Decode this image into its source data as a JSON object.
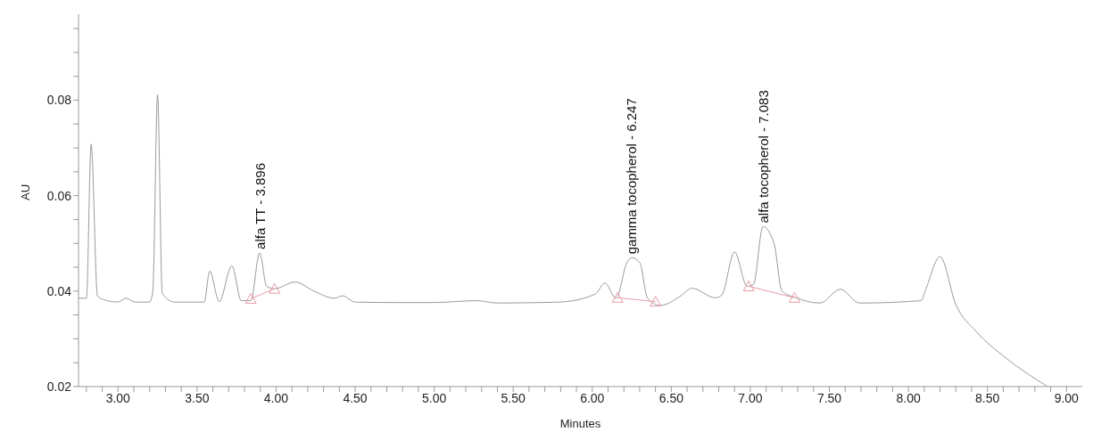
{
  "chart_data": {
    "type": "line",
    "xlabel": "Minutes",
    "ylabel": "AU",
    "xlim": [
      2.75,
      9.1
    ],
    "ylim": [
      0.02,
      0.098
    ],
    "xticks": [
      {
        "value": 2.8,
        "label": null
      },
      {
        "value": 2.9,
        "label": null
      },
      "3.00",
      {
        "value": 3.1,
        "label": null
      },
      {
        "value": 3.2,
        "label": null
      },
      {
        "value": 3.3,
        "label": null
      },
      {
        "value": 3.4,
        "label": null
      },
      {
        "value": 3.5,
        "label": "3.50"
      },
      {
        "value": 3.6,
        "label": null
      },
      {
        "value": 3.7,
        "label": null
      },
      {
        "value": 3.8,
        "label": null
      },
      {
        "value": 3.9,
        "label": null
      },
      {
        "value": 4,
        "label": "4.00"
      },
      {
        "value": 4.1,
        "label": null
      },
      {
        "value": 4.2,
        "label": null
      },
      {
        "value": 4.3,
        "label": null
      },
      {
        "value": 4.4,
        "label": null
      },
      {
        "value": 4.5,
        "label": "4.50"
      },
      {
        "value": 4.6,
        "label": null
      },
      {
        "value": 4.7,
        "label": null
      },
      {
        "value": 4.8,
        "label": null
      },
      {
        "value": 4.9,
        "label": null
      },
      {
        "value": 5,
        "label": "5.00"
      },
      {
        "value": 5.1,
        "label": null
      },
      {
        "value": 5.2,
        "label": null
      },
      {
        "value": 5.3,
        "label": null
      },
      {
        "value": 5.4,
        "label": null
      },
      {
        "value": 5.5,
        "label": "5.50"
      },
      {
        "value": 5.6,
        "label": null
      },
      {
        "value": 5.7,
        "label": null
      },
      {
        "value": 5.8,
        "label": null
      },
      {
        "value": 5.9,
        "label": null
      },
      {
        "value": 6,
        "label": "6.00"
      },
      {
        "value": 6.1,
        "label": null
      },
      {
        "value": 6.2,
        "label": null
      },
      {
        "value": 6.3,
        "label": null
      },
      {
        "value": 6.4,
        "label": null
      },
      {
        "value": 6.5,
        "label": "6.50"
      },
      {
        "value": 6.6,
        "label": null
      },
      {
        "value": 6.7,
        "label": null
      },
      {
        "value": 6.8,
        "label": null
      },
      {
        "value": 6.9,
        "label": null
      },
      {
        "value": 7,
        "label": "7.00"
      },
      {
        "value": 7.1,
        "label": null
      },
      {
        "value": 7.2,
        "label": null
      },
      {
        "value": 7.3,
        "label": null
      },
      {
        "value": 7.4,
        "label": null
      },
      {
        "value": 7.5,
        "label": "7.50"
      },
      {
        "value": 7.6,
        "label": null
      },
      {
        "value": 7.7,
        "label": null
      },
      {
        "value": 7.8,
        "label": null
      },
      {
        "value": 7.9,
        "label": null
      },
      {
        "value": 8,
        "label": "8.00"
      },
      {
        "value": 8.1,
        "label": null
      },
      {
        "value": 8.2,
        "label": null
      },
      {
        "value": 8.3,
        "label": null
      },
      {
        "value": 8.4,
        "label": null
      },
      {
        "value": 8.5,
        "label": "8.50"
      },
      {
        "value": 8.6,
        "label": null
      },
      {
        "value": 8.7,
        "label": null
      },
      {
        "value": 8.8,
        "label": null
      },
      {
        "value": 8.9,
        "label": null
      },
      {
        "value": 9,
        "label": "9.00"
      }
    ],
    "yticks": [
      0.02,
      {
        "value": 0.025,
        "label": null
      },
      {
        "value": 0.03,
        "label": null
      },
      {
        "value": 0.035,
        "label": null
      },
      0.04,
      {
        "value": 0.045,
        "label": null
      },
      {
        "value": 0.05,
        "label": null
      },
      {
        "value": 0.055,
        "label": null
      },
      0.06,
      {
        "value": 0.065,
        "label": null
      },
      {
        "value": 0.07,
        "label": null
      },
      {
        "value": 0.075,
        "label": null
      },
      0.08,
      {
        "value": 0.085,
        "label": null
      },
      {
        "value": 0.09,
        "label": null
      },
      {
        "value": 0.095,
        "label": null
      }
    ],
    "grid": false,
    "legend": false,
    "line_style": "solid",
    "marker": "none",
    "series": [
      {
        "color": "#9a9a9a",
        "x": [
          2.75,
          2.8,
          2.83,
          2.87,
          2.91,
          3.0,
          3.05,
          3.11,
          3.2,
          3.22,
          3.25,
          3.28,
          3.36,
          3.545,
          3.58,
          3.64,
          3.72,
          3.78,
          3.84,
          3.896,
          3.94,
          3.99,
          4.12,
          4.24,
          4.37,
          4.42,
          4.5,
          4.8,
          5.0,
          5.27,
          5.4,
          5.79,
          6.02,
          6.08,
          6.15,
          6.22,
          6.25,
          6.3,
          6.35,
          6.43,
          6.56,
          6.63,
          6.78,
          6.82,
          6.9,
          6.98,
          7.02,
          7.08,
          7.15,
          7.2,
          7.29,
          7.44,
          7.57,
          7.69,
          8.08,
          8.11,
          8.2,
          8.3,
          8.43,
          8.62,
          8.88
        ],
        "values": [
          0.0385,
          0.0385,
          0.0708,
          0.039,
          0.0382,
          0.0377,
          0.0385,
          0.0377,
          0.0377,
          0.04,
          0.0811,
          0.0395,
          0.0377,
          0.0377,
          0.0442,
          0.0378,
          0.0453,
          0.038,
          0.038,
          0.048,
          0.041,
          0.0405,
          0.0419,
          0.04,
          0.0385,
          0.039,
          0.0377,
          0.0376,
          0.0376,
          0.038,
          0.0375,
          0.0377,
          0.0394,
          0.0417,
          0.0385,
          0.046,
          0.047,
          0.046,
          0.0385,
          0.037,
          0.039,
          0.0406,
          0.0386,
          0.0392,
          0.0482,
          0.041,
          0.0414,
          0.0535,
          0.05,
          0.04,
          0.0386,
          0.0375,
          0.0404,
          0.0375,
          0.038,
          0.0404,
          0.0472,
          0.0372,
          0.0315,
          0.0259,
          0.02
        ]
      },
      {
        "color": "#e89aa6",
        "marker": "triangle",
        "x": [
          3.84,
          3.99
        ],
        "values": [
          0.0384,
          0.0405
        ]
      },
      {
        "color": "#e89aa6",
        "marker": "triangle",
        "x": [
          6.16,
          6.4
        ],
        "values": [
          0.0386,
          0.0378
        ]
      },
      {
        "color": "#e89aa6",
        "marker": "triangle",
        "x": [
          6.99,
          7.28
        ],
        "values": [
          0.041,
          0.0386
        ]
      }
    ],
    "annotations": [
      {
        "text": "alfa TT - 3.896",
        "x": 3.896,
        "y": 0.048
      },
      {
        "text": "gamma tocopherol - 6.247",
        "x": 6.247,
        "y": 0.047
      },
      {
        "text": "alfa tocopherol - 7.083",
        "x": 7.083,
        "y": 0.0535
      }
    ]
  }
}
